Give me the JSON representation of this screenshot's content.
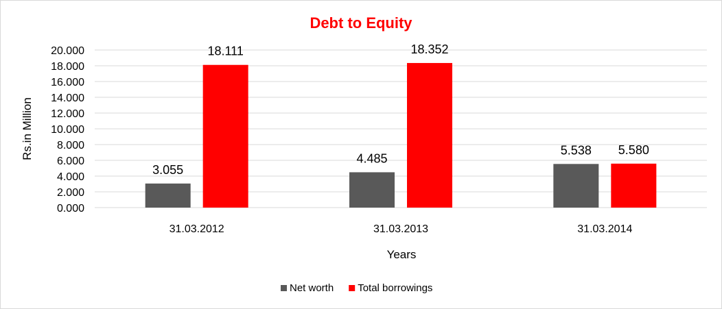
{
  "chart_data": {
    "type": "bar",
    "title": "Debt to Equity",
    "title_color": "#ff0000",
    "xlabel": "Years",
    "ylabel": "Rs.in Million",
    "categories": [
      "31.03.2012",
      "31.03.2013",
      "31.03.2014"
    ],
    "series": [
      {
        "name": "Net worth",
        "color": "#595959",
        "values": [
          3.055,
          4.485,
          5.538
        ],
        "labels": [
          "3.055",
          "4.485",
          "5.538"
        ]
      },
      {
        "name": "Total borrowings",
        "color": "#ff0000",
        "values": [
          18.111,
          18.352,
          5.58
        ],
        "labels": [
          "18.111",
          "18.352",
          "5.580"
        ]
      }
    ],
    "ylim": [
      0,
      20
    ],
    "yticks": [
      "0.000",
      "2.000",
      "4.000",
      "6.000",
      "8.000",
      "10.000",
      "12.000",
      "14.000",
      "16.000",
      "18.000",
      "20.000"
    ],
    "grid": true,
    "gridline_color": "#d9d9d9",
    "legend_position": "bottom"
  }
}
